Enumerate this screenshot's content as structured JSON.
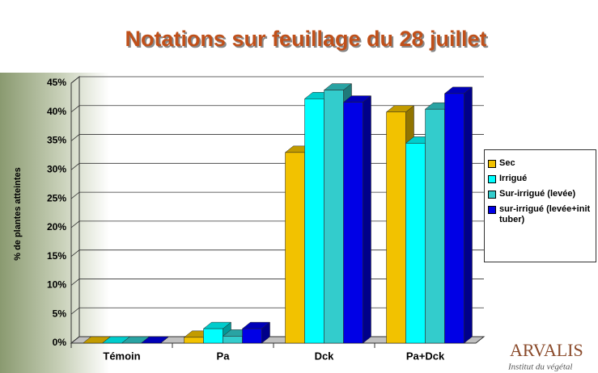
{
  "chart_data": {
    "type": "bar3d",
    "title": "Notations sur feuillage du 28 juillet",
    "y_label": "% de plantes atteintes",
    "categories": [
      "Témoin",
      "Pa",
      "Dck",
      "Pa+Dck"
    ],
    "series": [
      {
        "name": "Sec",
        "color": "#f2c200",
        "values": [
          0,
          1.0,
          33.0,
          40.0
        ]
      },
      {
        "name": "Irrigué",
        "color": "#00ffff",
        "values": [
          0,
          2.5,
          42.3,
          34.6
        ]
      },
      {
        "name": "Sur-irrigué (levée)",
        "color": "#33cccc",
        "values": [
          0,
          1.2,
          43.8,
          40.5
        ]
      },
      {
        "name": "sur-irrigué (levée+init tuber)",
        "color": "#0000e6",
        "values": [
          0,
          2.5,
          41.7,
          43.2
        ]
      }
    ],
    "ylim": [
      0,
      45
    ],
    "yticks": [
      {
        "value": 0,
        "label": "0%"
      },
      {
        "value": 5,
        "label": "5%"
      },
      {
        "value": 10,
        "label": "10%"
      },
      {
        "value": 15,
        "label": "15%"
      },
      {
        "value": 20,
        "label": "20%"
      },
      {
        "value": 25,
        "label": "25%"
      },
      {
        "value": 30,
        "label": "30%"
      },
      {
        "value": 35,
        "label": "35%"
      },
      {
        "value": 40,
        "label": "40%"
      },
      {
        "value": 45,
        "label": "45%"
      }
    ],
    "grid": true,
    "legend": "right"
  },
  "logo": {
    "name": "ARVALIS",
    "subtitle": "Institut du végétal"
  }
}
